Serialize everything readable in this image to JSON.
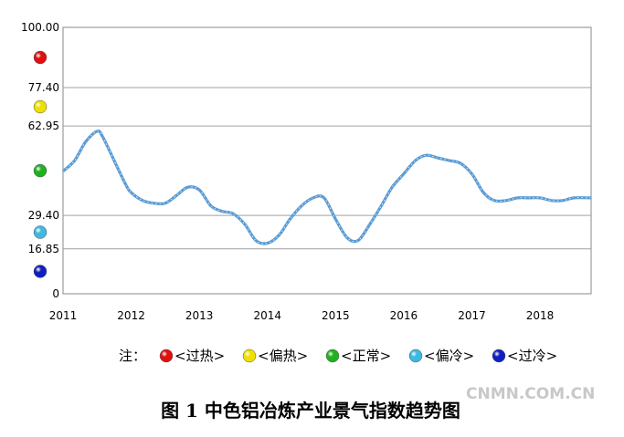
{
  "chart_data": {
    "type": "line",
    "title": "",
    "xlabel": "",
    "ylabel": "",
    "ylim": [
      0,
      100
    ],
    "y_ticks": [
      "100.00",
      "77.40",
      "62.95",
      "29.40",
      "16.85",
      "0"
    ],
    "y_tick_values": [
      100,
      77.4,
      62.95,
      29.4,
      16.85,
      0
    ],
    "x_ticks": [
      "2011",
      "2012",
      "2013",
      "2014",
      "2015",
      "2016",
      "2017",
      "2018"
    ],
    "x_tick_values": [
      2011,
      2012,
      2013,
      2014,
      2015,
      2016,
      2017,
      2018
    ],
    "xlim": [
      2011,
      2018.75
    ],
    "grid": true,
    "series": [
      {
        "name": "",
        "color": "#5a9bd5",
        "x": [
          2011.0,
          2011.17,
          2011.33,
          2011.5,
          2011.58,
          2011.75,
          2011.92,
          2012.0,
          2012.17,
          2012.33,
          2012.5,
          2012.67,
          2012.83,
          2013.0,
          2013.17,
          2013.33,
          2013.5,
          2013.67,
          2013.83,
          2014.0,
          2014.17,
          2014.33,
          2014.5,
          2014.67,
          2014.83,
          2015.0,
          2015.17,
          2015.33,
          2015.5,
          2015.67,
          2015.83,
          2016.0,
          2016.17,
          2016.33,
          2016.5,
          2016.67,
          2016.83,
          2017.0,
          2017.17,
          2017.33,
          2017.5,
          2017.67,
          2017.83,
          2018.0,
          2018.17,
          2018.33,
          2018.5,
          2018.75
        ],
        "values": [
          46,
          50,
          57,
          61,
          59,
          50,
          41,
          38,
          35,
          34,
          34,
          37,
          40,
          39,
          33,
          31,
          30,
          26,
          20,
          19,
          22,
          28,
          33,
          36,
          36,
          28,
          21,
          20,
          26,
          33,
          40,
          45,
          50,
          52,
          51,
          50,
          49,
          45,
          38,
          35,
          35,
          36,
          36,
          36,
          35,
          35,
          36,
          36
        ]
      }
    ]
  },
  "legend": {
    "prefix": "注：",
    "items": [
      {
        "label": "<过热>",
        "color": "#e01010"
      },
      {
        "label": "<偏热>",
        "color": "#f0e000"
      },
      {
        "label": "<正常>",
        "color": "#20b020"
      },
      {
        "label": "<偏冷>",
        "color": "#40b8e0"
      },
      {
        "label": "<过冷>",
        "color": "#1020c0"
      }
    ]
  },
  "zone_markers": [
    {
      "value": 88.7,
      "color": "#e01010"
    },
    {
      "value": 70.2,
      "color": "#f0e000"
    },
    {
      "value": 46.2,
      "color": "#20b020"
    },
    {
      "value": 23.1,
      "color": "#40b8e0"
    },
    {
      "value": 8.4,
      "color": "#1020c0"
    }
  ],
  "caption": "图 1 中色铝冶炼产业景气指数趋势图",
  "watermark": "CNMN.COM.CN"
}
